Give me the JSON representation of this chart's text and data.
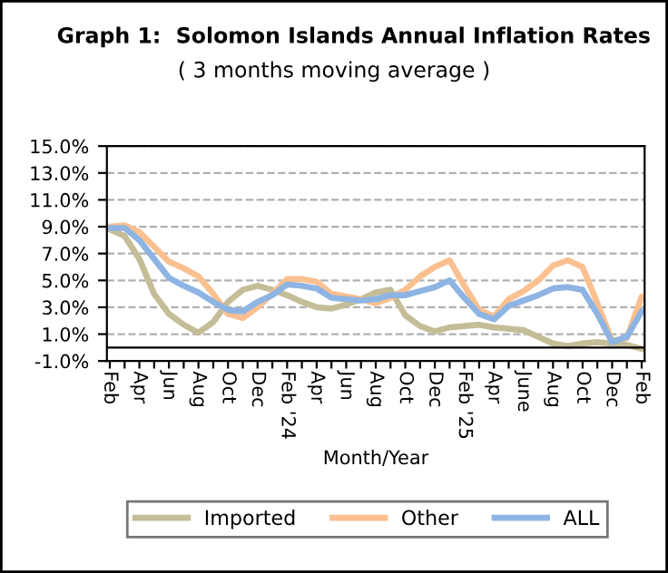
{
  "chart_data": {
    "type": "line",
    "title": "Graph 1:  Solomon Islands Annual Inflation Rates",
    "subtitle": "( 3 months moving average )",
    "xlabel": "Month/Year",
    "categories": [
      "Feb",
      null,
      "Apr",
      null,
      "Jun",
      null,
      "Aug",
      null,
      "Oct",
      null,
      "Dec",
      null,
      "Feb '24",
      null,
      "Apr",
      null,
      "Jun",
      null,
      "Aug",
      null,
      "Oct",
      null,
      "Dec",
      null,
      "Feb '25",
      null,
      "Apr",
      null,
      "June",
      null,
      "Aug",
      null,
      "Oct",
      null,
      "Dec",
      null,
      "Feb"
    ],
    "series": [
      {
        "name": "Imported",
        "color": "#c4bd97",
        "values": [
          8.8,
          8.3,
          6.6,
          4.0,
          2.5,
          1.7,
          1.1,
          1.9,
          3.4,
          4.3,
          4.6,
          4.3,
          3.9,
          3.4,
          3.0,
          2.9,
          3.2,
          3.6,
          4.1,
          4.3,
          2.4,
          1.6,
          1.2,
          1.5,
          1.6,
          1.7,
          1.5,
          1.4,
          1.3,
          0.8,
          0.3,
          0.1,
          0.3,
          0.4,
          0.3,
          0.2,
          -0.1
        ]
      },
      {
        "name": "Other",
        "color": "#fac090",
        "values": [
          9.0,
          9.1,
          8.6,
          7.5,
          6.4,
          5.9,
          5.3,
          4.0,
          2.5,
          2.2,
          3.0,
          4.0,
          5.1,
          5.1,
          4.9,
          4.0,
          3.8,
          3.6,
          3.3,
          3.7,
          4.3,
          5.3,
          6.0,
          6.5,
          4.6,
          2.8,
          2.3,
          3.6,
          4.2,
          5.0,
          6.1,
          6.5,
          6.0,
          3.3,
          0.5,
          0.7,
          3.8
        ]
      },
      {
        "name": "ALL",
        "color": "#8eb4e3",
        "values": [
          8.9,
          8.9,
          8.0,
          6.6,
          5.2,
          4.6,
          4.1,
          3.4,
          2.8,
          2.7,
          3.4,
          3.9,
          4.7,
          4.6,
          4.4,
          3.7,
          3.6,
          3.5,
          3.6,
          3.9,
          3.9,
          4.2,
          4.5,
          5.0,
          3.7,
          2.5,
          2.1,
          3.1,
          3.5,
          3.9,
          4.4,
          4.5,
          4.3,
          2.5,
          0.4,
          0.8,
          2.7
        ]
      }
    ],
    "ylim": [
      -1,
      15
    ],
    "yticks": [
      {
        "value": -1,
        "label": "-1.0%"
      },
      {
        "value": 1,
        "label": "1.0%"
      },
      {
        "value": 3,
        "label": "3.0%"
      },
      {
        "value": 5,
        "label": "5.0%"
      },
      {
        "value": 7,
        "label": "7.0%"
      },
      {
        "value": 9,
        "label": "9.0%"
      },
      {
        "value": 11,
        "label": "11.0%"
      },
      {
        "value": 13,
        "label": "13.0%"
      },
      {
        "value": 15,
        "label": "15.0%"
      }
    ],
    "ref_lines": [
      {
        "axis": "y",
        "value": 0,
        "color": "#000000"
      }
    ],
    "grid": "y",
    "legend": "bottom",
    "marker": "none",
    "line_style": "solid"
  }
}
